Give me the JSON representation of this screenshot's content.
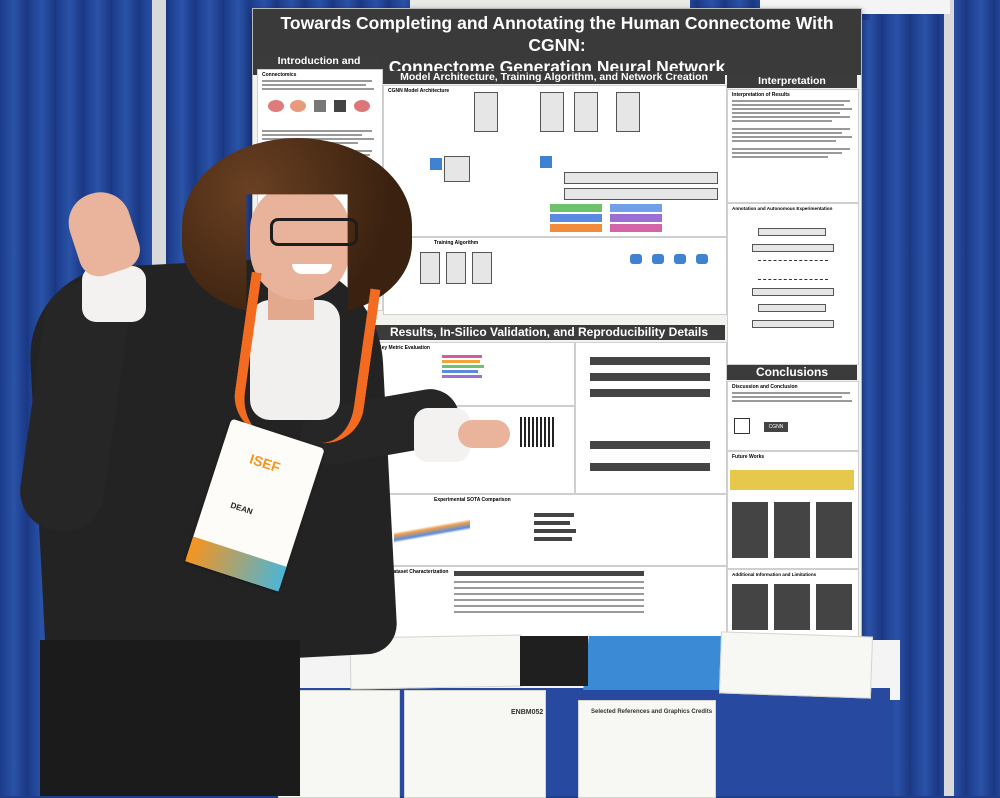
{
  "poster": {
    "title_line1": "Towards Completing and Annotating the Human Connectome With CGNN:",
    "title_line2": "Connectome Generation Neural Network",
    "intro_heading": "Introduction and Problem",
    "model_heading": "Model Architecture, Training Algorithm, and Network Creation",
    "interpretation_heading": "Interpretation",
    "results_heading": "Results, In-Silico Validation, and Reproducibility Details",
    "conclusions_heading": "Conclusions",
    "architecture_label": "CGNN Model Architecture",
    "training_label": "Training Algorithm",
    "key_metric_label": "Key Metric Evaluation",
    "sota_label": "Experimental SOTA Comparison",
    "hcp_label": "HCP Dataset Characterization",
    "discussion_label": "Discussion and Conclusion",
    "future_label": "Future Works",
    "limitations_label": "Additional Information and Limitations",
    "interpretation_results_label": "Interpretation of Results",
    "annotation_label": "Annotation and Autonomous Experimentation",
    "connectomics_label": "Connectomics",
    "cgnn_label": "CGNN"
  },
  "badge": {
    "event": "ISEF",
    "name": "DEAN"
  },
  "table_papers": {
    "code": "ENBM052",
    "references_heading": "Selected References and Graphics Credits"
  },
  "colors": {
    "curtain": "#1e3f8c",
    "poster_header": "#3a3a3a",
    "lanyard": "#f36b21",
    "badge_accent": "#f7941d",
    "suit": "#222222"
  }
}
